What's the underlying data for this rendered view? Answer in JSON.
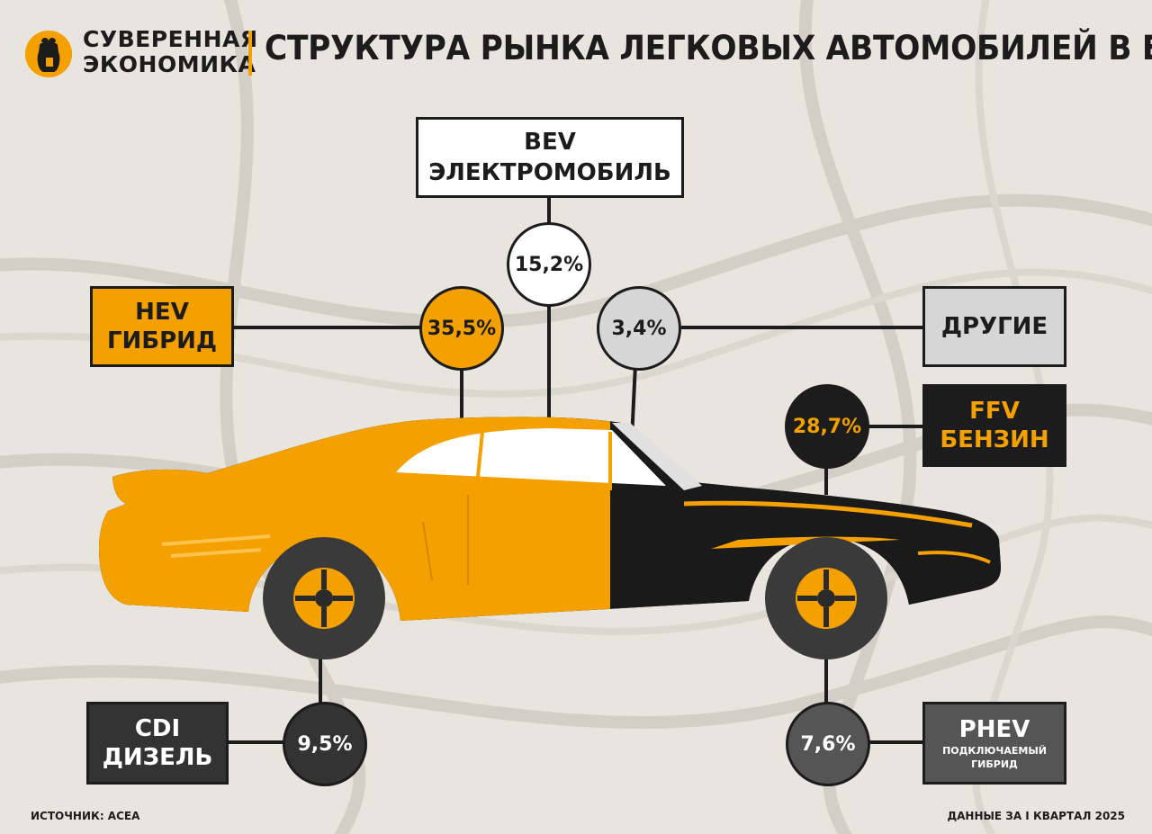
{
  "header": {
    "logo_line1": "СУВЕРЕННАЯ",
    "logo_line2": "ЭКОНОМИКА",
    "title": "СТРУКТУРА РЫНКА ЛЕГКОВЫХ АВТОМОБИЛЕЙ В ЕС"
  },
  "colors": {
    "accent": "#f4a000",
    "dark": "#1c1c1c",
    "grey": "#d6d6d6",
    "dark_grey": "#333333",
    "mid_grey": "#555555"
  },
  "chart_data": {
    "type": "pie",
    "title": "СТРУКТУРА РЫНКА ЛЕГКОВЫХ АВТОМОБИЛЕЙ В ЕС",
    "categories": [
      {
        "code": "HEV",
        "name": "ГИБРИД",
        "value": 35.5,
        "label": "35,5%"
      },
      {
        "code": "BEV",
        "name": "ЭЛЕКТРОМОБИЛЬ",
        "value": 15.2,
        "label": "15,2%"
      },
      {
        "code": "",
        "name": "ДРУГИЕ",
        "value": 3.4,
        "label": "3,4%"
      },
      {
        "code": "FFV",
        "name": "БЕНЗИН",
        "value": 28.7,
        "label": "28,7%"
      },
      {
        "code": "CDI",
        "name": "ДИЗЕЛЬ",
        "value": 9.5,
        "label": "9,5%"
      },
      {
        "code": "PHEV",
        "name": "ПОДКЛЮЧАЕМЫЙ ГИБРИД",
        "value": 7.6,
        "label": "7,6%"
      }
    ]
  },
  "footer": {
    "source": "ИСТОЧНИК: ACEA",
    "period": "ДАННЫЕ ЗА I КВАРТАЛ 2025"
  },
  "labels": {
    "phev_line2": "ПОДКЛЮЧАЕМЫЙ",
    "phev_line3": "ГИБРИД"
  }
}
